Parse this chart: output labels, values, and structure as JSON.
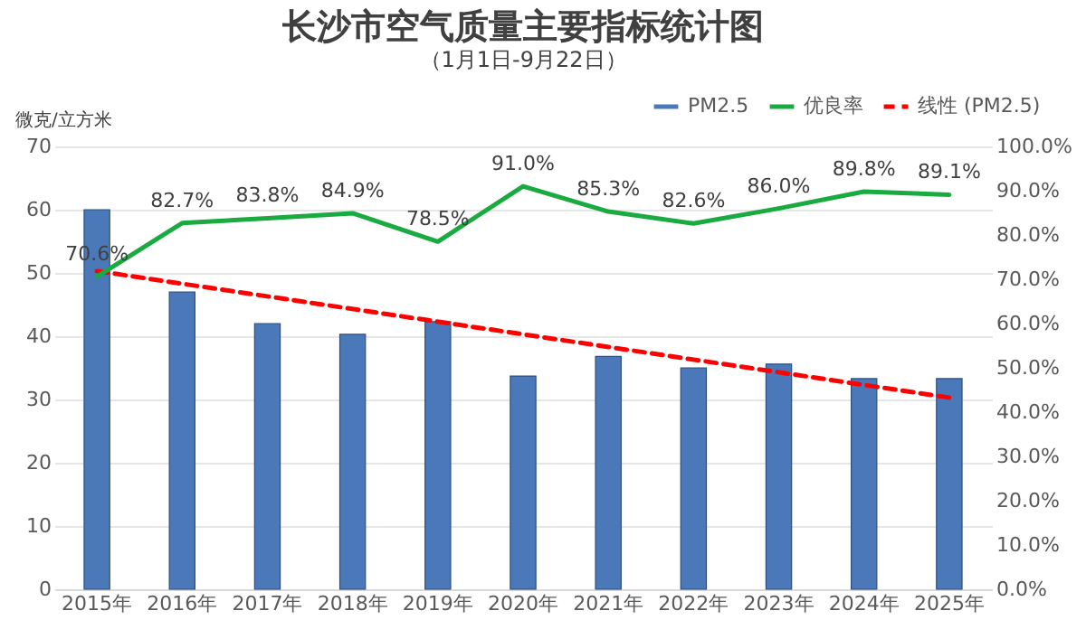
{
  "chart_data": {
    "type": "bar",
    "title": "长沙市空气质量主要指标统计图",
    "subtitle": "（1月1日-9月22日）",
    "ylabel": "微克/立方米",
    "categories": [
      "2015年",
      "2016年",
      "2017年",
      "2018年",
      "2019年",
      "2020年",
      "2021年",
      "2022年",
      "2023年",
      "2024年",
      "2025年"
    ],
    "series": [
      {
        "name": "PM2.5",
        "color": "#4a78b8",
        "axis": "y",
        "values": [
          60,
          47,
          42,
          40.3,
          42.3,
          33.7,
          36.8,
          35,
          35.6,
          33.3,
          33.3
        ]
      },
      {
        "name": "优良率",
        "type": "line",
        "color": "#1aab40",
        "axis": "y2",
        "values": [
          70.6,
          82.7,
          83.8,
          84.9,
          78.5,
          91.0,
          85.3,
          82.6,
          86.0,
          89.8,
          89.1
        ],
        "value_labels": [
          "70.6%",
          "82.7%",
          "83.8%",
          "84.9%",
          "78.5%",
          "91.0%",
          "85.3%",
          "82.6%",
          "86.0%",
          "89.8%",
          "89.1%"
        ]
      },
      {
        "name": "线性 (PM2.5)",
        "type": "line",
        "color": "#ff0000",
        "axis": "y",
        "line_style": "dashed",
        "x": [
          "2015年",
          "2025年"
        ],
        "values": [
          50.3,
          30.3
        ]
      }
    ],
    "ylim": [
      0,
      70
    ],
    "yticks": [
      0,
      10,
      20,
      30,
      40,
      50,
      60,
      70
    ],
    "y2lim": [
      0,
      100
    ],
    "y2ticks": [
      {
        "value": 0,
        "label": "0.0%"
      },
      {
        "value": 10,
        "label": "10.0%"
      },
      {
        "value": 20,
        "label": "20.0%"
      },
      {
        "value": 30,
        "label": "30.0%"
      },
      {
        "value": 40,
        "label": "40.0%"
      },
      {
        "value": 50,
        "label": "50.0%"
      },
      {
        "value": 60,
        "label": "60.0%"
      },
      {
        "value": 70,
        "label": "70.0%"
      },
      {
        "value": 80,
        "label": "80.0%"
      },
      {
        "value": 90,
        "label": "90.0%"
      },
      {
        "value": 100,
        "label": "100.0%"
      }
    ],
    "grid": "y",
    "legend": "top right",
    "marker": "none"
  }
}
